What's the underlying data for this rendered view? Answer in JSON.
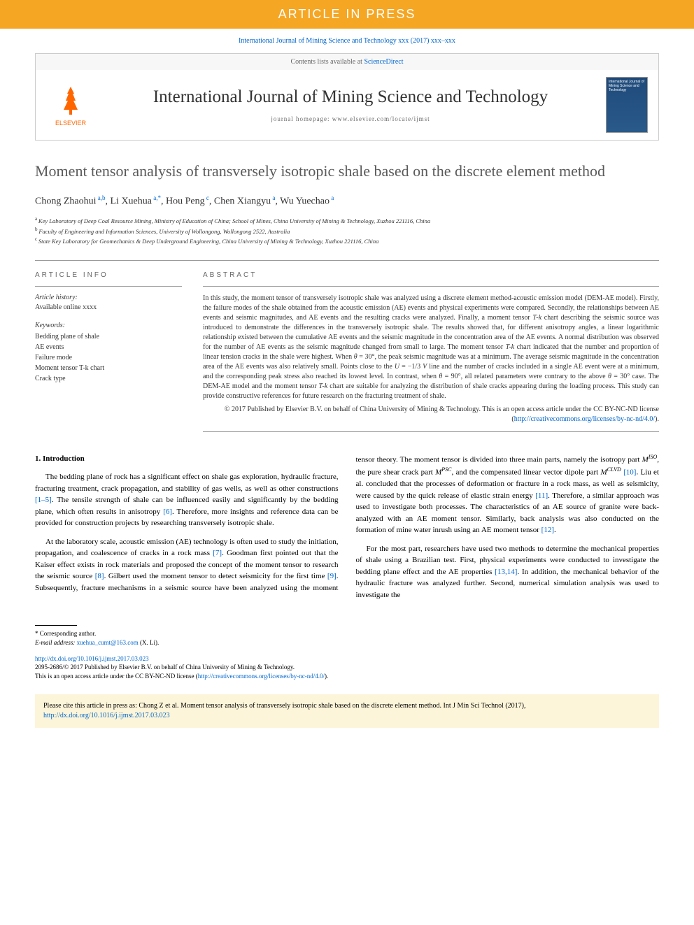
{
  "banner": {
    "text": "ARTICLE IN PRESS"
  },
  "journalRef": "International Journal of Mining Science and Technology xxx (2017) xxx–xxx",
  "header": {
    "contentsText": "Contents lists available at ",
    "contentsLink": "ScienceDirect",
    "elsevierLabel": "ELSEVIER",
    "journalTitle": "International Journal of Mining Science and Technology",
    "homepageLabel": "journal homepage: www.elsevier.com/locate/ijmst",
    "coverTitle": "International Journal of Mining Science and Technology"
  },
  "article": {
    "title": "Moment tensor analysis of transversely isotropic shale based on the discrete element method",
    "authors": [
      {
        "name": "Chong Zhaohui",
        "aff": "a,b"
      },
      {
        "name": "Li Xuehua",
        "aff": "a,",
        "corresponding": true
      },
      {
        "name": "Hou Peng",
        "aff": "c"
      },
      {
        "name": "Chen Xiangyu",
        "aff": "a"
      },
      {
        "name": "Wu Yuechao",
        "aff": "a"
      }
    ],
    "affiliations": [
      {
        "sup": "a",
        "text": "Key Laboratory of Deep Coal Resource Mining, Ministry of Education of China; School of Mines, China University of Mining & Technology, Xuzhou 221116, China"
      },
      {
        "sup": "b",
        "text": "Faculty of Engineering and Information Sciences, University of Wollongong, Wollongong 2522, Australia"
      },
      {
        "sup": "c",
        "text": "State Key Laboratory for Geomechanics & Deep Underground Engineering, China University of Mining & Technology, Xuzhou 221116, China"
      }
    ]
  },
  "info": {
    "sectionLabel": "ARTICLE INFO",
    "historyLabel": "Article history:",
    "historyItem": "Available online xxxx",
    "keywordsLabel": "Keywords:",
    "keywords": [
      "Bedding plane of shale",
      "AE events",
      "Failure mode",
      "Moment tensor T-k chart",
      "Crack type"
    ]
  },
  "abstract": {
    "label": "ABSTRACT",
    "text": "In this study, the moment tensor of transversely isotropic shale was analyzed using a discrete element method-acoustic emission model (DEM-AE model). Firstly, the failure modes of the shale obtained from the acoustic emission (AE) events and physical experiments were compared. Secondly, the relationships between AE events and seismic magnitudes, and AE events and the resulting cracks were analyzed. Finally, a moment tensor T-k chart describing the seismic source was introduced to demonstrate the differences in the transversely isotropic shale. The results showed that, for different anisotropy angles, a linear logarithmic relationship existed between the cumulative AE events and the seismic magnitude in the concentration area of the AE events. A normal distribution was observed for the number of AE events as the seismic magnitude changed from small to large. The moment tensor T-k chart indicated that the number and proportion of linear tension cracks in the shale were highest. When θ = 30°, the peak seismic magnitude was at a minimum. The average seismic magnitude in the concentration area of the AE events was also relatively small. Points close to the U = −1/3 V line and the number of cracks included in a single AE event were at a minimum, and the corresponding peak stress also reached its lowest level. In contrast, when θ = 90°, all related parameters were contrary to the above θ = 30° case. The DEM-AE model and the moment tensor T-k chart are suitable for analyzing the distribution of shale cracks appearing during the loading process. This study can provide constructive references for future research on the fracturing treatment of shale.",
    "copyright": "© 2017 Published by Elsevier B.V. on behalf of China University of Mining & Technology. This is an open access article under the CC BY-NC-ND license (",
    "licenseUrl": "http://creativecommons.org/licenses/by-nc-nd/4.0/",
    "copyrightEnd": ")."
  },
  "body": {
    "heading": "1. Introduction",
    "p1a": "The bedding plane of rock has a significant effect on shale gas exploration, hydraulic fracture, fracturing treatment, crack propagation, and stability of gas wells, as well as other constructions ",
    "p1cite1": "[1–5]",
    "p1b": ". The tensile strength of shale can be influenced easily and significantly by the bedding plane, which often results in anisotropy ",
    "p1cite2": "[6]",
    "p1c": ". Therefore, more insights and reference data can be provided for construction projects by researching transversely isotropic shale.",
    "p2a": "At the laboratory scale, acoustic emission (AE) technology is often used to study the initiation, propagation, and coalescence of cracks in a rock mass ",
    "p2cite1": "[7]",
    "p2b": ". Goodman first pointed out that the Kaiser effect exists in rock materials and proposed the concept of the moment tensor to research the seismic source ",
    "p2cite2": "[8]",
    "p2c": ". Gilbert used the moment tensor to detect seismicity for the first time ",
    "p2cite3": "[9]",
    "p2d": ". Sub",
    "p2e": "sequently, fracture mechanisms in a seismic source have been analyzed using the moment tensor theory. The moment tensor is divided into three main parts, namely the isotropy part ",
    "p2miso": "M",
    "p2misosup": "ISO",
    "p2f": ", the pure shear crack part ",
    "p2mpsc": "M",
    "p2mpscsup": "PSC",
    "p2g": ", and the compensated linear vector dipole part ",
    "p2mclvd": "M",
    "p2mclvdsup": "CLVD",
    "p2cite4": " [10]",
    "p2h": ". Liu et al. concluded that the processes of deformation or fracture in a rock mass, as well as seismicity, were caused by the quick release of elastic strain energy ",
    "p2cite5": "[11]",
    "p2i": ". Therefore, a similar approach was used to investigate both processes. The characteristics of an AE source of granite were back-analyzed with an AE moment tensor. Similarly, back analysis was also conducted on the formation of mine water inrush using an AE moment tensor ",
    "p2cite6": "[12]",
    "p2j": ".",
    "p3a": "For the most part, researchers have used two methods to determine the mechanical properties of shale using a Brazilian test. First, physical experiments were conducted to investigate the bedding plane effect and the AE properties ",
    "p3cite1": "[13,14]",
    "p3b": ". In addition, the mechanical behavior of the hydraulic fracture was analyzed further. Second, numerical simulation analysis was used to investigate the"
  },
  "footnotes": {
    "corrLabelStar": "*",
    "corrLabel": " Corresponding author.",
    "emailLabel": "E-mail address: ",
    "email": "xuehua_cumt@163.com",
    "emailSuffix": " (X. Li)."
  },
  "doi": {
    "url": "http://dx.doi.org/10.1016/j.ijmst.2017.03.023",
    "issn": "2095-2686/© 2017 Published by Elsevier B.V. on behalf of China University of Mining & Technology.",
    "license": "This is an open access article under the CC BY-NC-ND license (",
    "licenseUrl": "http://creativecommons.org/licenses/by-nc-nd/4.0/",
    "licenseEnd": ")."
  },
  "citationBox": {
    "prefix": "Please cite this article in press as: Chong Z et al. Moment tensor analysis of transversely isotropic shale based on the discrete element method. Int J Min Sci Technol (2017), ",
    "url": "http://dx.doi.org/10.1016/j.ijmst.2017.03.023"
  },
  "colors": {
    "bannerBg": "#f5a623",
    "link": "#0066cc",
    "elsevierOrange": "#ff6600",
    "citationBg": "#fdf5d9"
  }
}
